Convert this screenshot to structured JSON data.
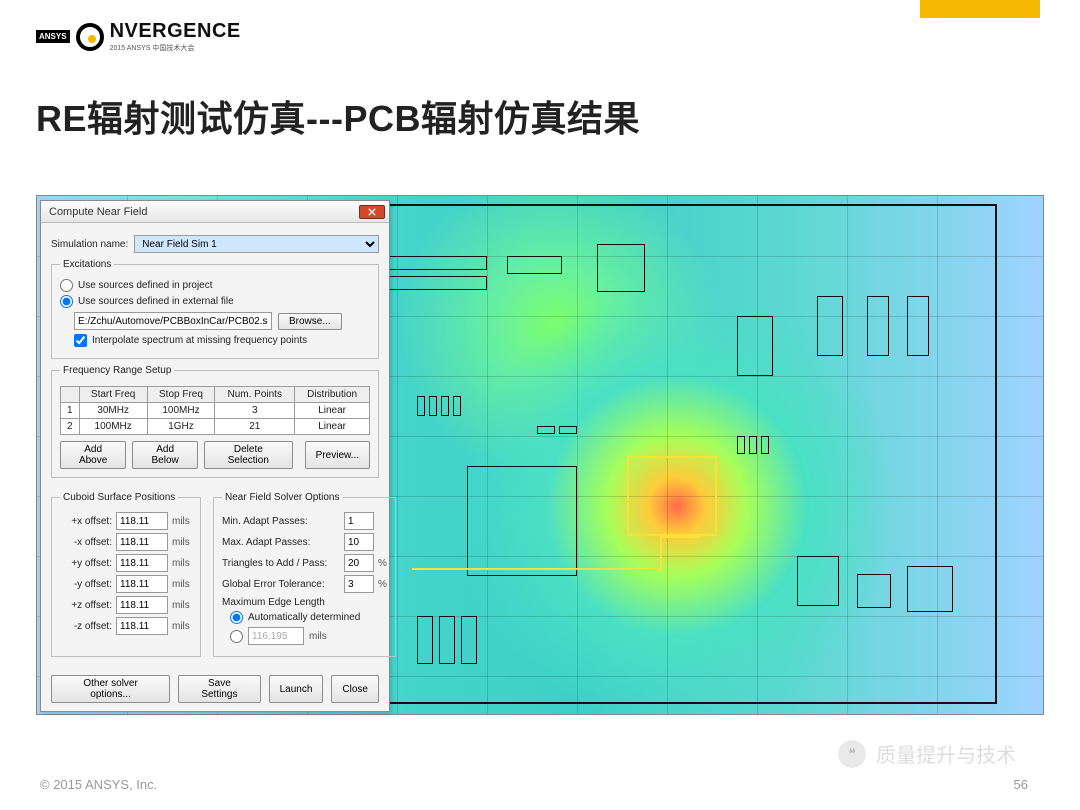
{
  "brand": {
    "badge": "ANSYS",
    "name": "NVERGENCE",
    "sub": "2015 ANSYS 中国技术大会"
  },
  "title": "RE辐射测试仿真---PCB辐射仿真结果",
  "dialog": {
    "title": "Compute Near Field",
    "sim_label": "Simulation name:",
    "sim_value": "Near Field Sim 1",
    "excitations": {
      "legend": "Excitations",
      "opt_project": "Use sources defined in project",
      "opt_external": "Use sources defined in external file",
      "path": "E:/Zchu/Automove/PCBBoxInCar/PCB02.siwave",
      "browse": "Browse...",
      "interp": "Interpolate spectrum at missing frequency points"
    },
    "freq": {
      "legend": "Frequency Range Setup",
      "headers": [
        "",
        "Start Freq",
        "Stop Freq",
        "Num. Points",
        "Distribution"
      ],
      "rows": [
        {
          "n": "1",
          "start": "30MHz",
          "stop": "100MHz",
          "pts": "3",
          "dist": "Linear"
        },
        {
          "n": "2",
          "start": "100MHz",
          "stop": "1GHz",
          "pts": "21",
          "dist": "Linear"
        }
      ],
      "add_above": "Add Above",
      "add_below": "Add Below",
      "delete": "Delete Selection",
      "preview": "Preview..."
    },
    "cuboid": {
      "legend": "Cuboid Surface Positions",
      "rows": [
        {
          "lbl": "+x offset:",
          "val": "118.11",
          "unit": "mils"
        },
        {
          "lbl": "-x offset:",
          "val": "118.11",
          "unit": "mils"
        },
        {
          "lbl": "+y offset:",
          "val": "118.11",
          "unit": "mils"
        },
        {
          "lbl": "-y offset:",
          "val": "118.11",
          "unit": "mils"
        },
        {
          "lbl": "+z offset:",
          "val": "118.11",
          "unit": "mils"
        },
        {
          "lbl": "-z offset:",
          "val": "118.11",
          "unit": "mils"
        }
      ]
    },
    "solver": {
      "legend": "Near Field Solver Options",
      "rows": [
        {
          "lbl": "Min. Adapt Passes:",
          "val": "1",
          "suffix": ""
        },
        {
          "lbl": "Max. Adapt Passes:",
          "val": "10",
          "suffix": ""
        },
        {
          "lbl": "Triangles to Add / Pass:",
          "val": "20",
          "suffix": "%"
        },
        {
          "lbl": "Global Error Tolerance:",
          "val": "3",
          "suffix": "%"
        }
      ],
      "max_edge": "Maximum Edge Length",
      "auto": "Automatically determined",
      "manual_val": "116.195",
      "manual_unit": "mils"
    },
    "footer": {
      "other": "Other solver options...",
      "save": "Save Settings",
      "launch": "Launch",
      "close": "Close"
    }
  },
  "watermark": "质量提升与技术",
  "copyright": "© 2015 ANSYS, Inc.",
  "page": "56",
  "colors": {
    "accent": "#f6b800"
  }
}
